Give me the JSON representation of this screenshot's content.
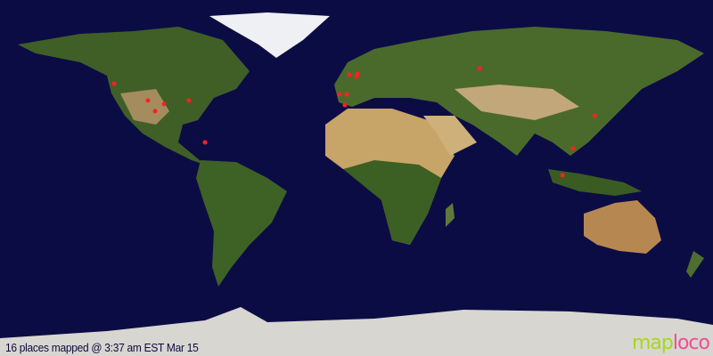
{
  "map": {
    "projection": "equirectangular",
    "colors": {
      "ocean": "#0c0c45",
      "marker": "#ff2020",
      "land_green": "#3d5e22",
      "land_desert": "#c9a86a",
      "ice": "#e6e8ec"
    },
    "markers": [
      {
        "lat": 47.7,
        "lon": -122.4
      },
      {
        "lat": 39.2,
        "lon": -105.3
      },
      {
        "lat": 37.4,
        "lon": -97.2
      },
      {
        "lat": 33.8,
        "lon": -101.7
      },
      {
        "lat": 39.2,
        "lon": -84.6
      },
      {
        "lat": 18.0,
        "lon": -76.5
      },
      {
        "lat": 52.2,
        "lon": -3.6
      },
      {
        "lat": 51.3,
        "lon": 0.0
      },
      {
        "lat": 52.7,
        "lon": 0.5
      },
      {
        "lat": 42.3,
        "lon": -8.6
      },
      {
        "lat": 42.3,
        "lon": -5.0
      },
      {
        "lat": 36.9,
        "lon": -5.9
      },
      {
        "lat": 55.4,
        "lon": 62.1
      },
      {
        "lat": 31.5,
        "lon": 120.2
      },
      {
        "lat": 14.9,
        "lon": 109.4
      },
      {
        "lat": 1.4,
        "lon": 104.0
      }
    ]
  },
  "caption": "16 places mapped @ 3:37 am EST Mar 15",
  "logo": {
    "part1": "map",
    "part2": "loco"
  }
}
